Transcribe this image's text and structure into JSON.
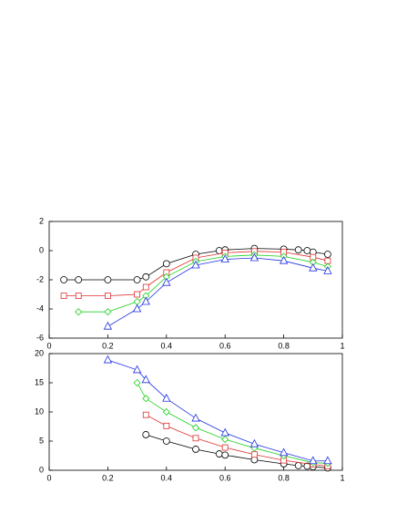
{
  "chart_data": [
    {
      "type": "line",
      "xlim": [
        0,
        1
      ],
      "ylim": [
        -6,
        2
      ],
      "xticks": [
        0,
        0.2,
        0.4,
        0.6,
        0.8,
        1
      ],
      "yticks": [
        -6,
        -4,
        -2,
        0,
        2
      ],
      "series": [
        {
          "color": "#000000",
          "marker": "circle",
          "x": [
            0.05,
            0.1,
            0.2,
            0.3,
            0.33,
            0.4,
            0.5,
            0.58,
            0.6,
            0.7,
            0.8,
            0.85,
            0.88,
            0.9,
            0.95
          ],
          "values": [
            -2.0,
            -2.0,
            -2.0,
            -2.0,
            -1.8,
            -0.9,
            -0.25,
            0.0,
            0.05,
            0.15,
            0.1,
            0.05,
            0.0,
            -0.1,
            -0.25
          ]
        },
        {
          "color": "#e03030",
          "marker": "square",
          "x": [
            0.05,
            0.1,
            0.2,
            0.3,
            0.33,
            0.4,
            0.5,
            0.6,
            0.7,
            0.8,
            0.9,
            0.95
          ],
          "values": [
            -3.1,
            -3.1,
            -3.1,
            -3.0,
            -2.5,
            -1.5,
            -0.5,
            -0.15,
            -0.05,
            -0.1,
            -0.45,
            -0.7
          ]
        },
        {
          "color": "#20d020",
          "marker": "diamond",
          "x": [
            0.1,
            0.2,
            0.3,
            0.33,
            0.4,
            0.5,
            0.6,
            0.7,
            0.8,
            0.9,
            0.95
          ],
          "values": [
            -4.2,
            -4.2,
            -3.5,
            -3.1,
            -1.8,
            -0.75,
            -0.4,
            -0.3,
            -0.4,
            -0.8,
            -1.1
          ]
        },
        {
          "color": "#2030e0",
          "marker": "triangle",
          "x": [
            0.2,
            0.3,
            0.33,
            0.4,
            0.5,
            0.6,
            0.7,
            0.8,
            0.9,
            0.95
          ],
          "values": [
            -5.2,
            -4.0,
            -3.5,
            -2.2,
            -1.0,
            -0.6,
            -0.5,
            -0.7,
            -1.2,
            -1.4
          ]
        }
      ]
    },
    {
      "type": "line",
      "xlim": [
        0,
        1
      ],
      "ylim": [
        0,
        20
      ],
      "xticks": [
        0,
        0.2,
        0.4,
        0.6,
        0.8,
        1
      ],
      "yticks": [
        0,
        5,
        10,
        15,
        20
      ],
      "series": [
        {
          "color": "#000000",
          "marker": "circle",
          "x": [
            0.33,
            0.4,
            0.5,
            0.58,
            0.6,
            0.7,
            0.8,
            0.85,
            0.88,
            0.9,
            0.95
          ],
          "values": [
            6.1,
            5.0,
            3.6,
            2.8,
            2.6,
            1.8,
            1.1,
            0.8,
            0.7,
            0.6,
            0.4
          ]
        },
        {
          "color": "#e03030",
          "marker": "square",
          "x": [
            0.33,
            0.4,
            0.5,
            0.6,
            0.7,
            0.8,
            0.9,
            0.95
          ],
          "values": [
            9.5,
            7.6,
            5.5,
            3.9,
            2.7,
            1.7,
            1.0,
            0.7
          ]
        },
        {
          "color": "#20d020",
          "marker": "diamond",
          "x": [
            0.3,
            0.33,
            0.4,
            0.5,
            0.6,
            0.7,
            0.8,
            0.9,
            0.95
          ],
          "values": [
            15.0,
            12.3,
            10.0,
            7.3,
            5.3,
            3.8,
            2.5,
            1.3,
            1.2
          ]
        },
        {
          "color": "#2030e0",
          "marker": "triangle",
          "x": [
            0.2,
            0.3,
            0.33,
            0.4,
            0.5,
            0.6,
            0.7,
            0.8,
            0.9,
            0.95
          ],
          "values": [
            18.9,
            17.2,
            15.5,
            12.3,
            8.9,
            6.4,
            4.5,
            3.0,
            1.6,
            1.6
          ]
        }
      ]
    }
  ]
}
